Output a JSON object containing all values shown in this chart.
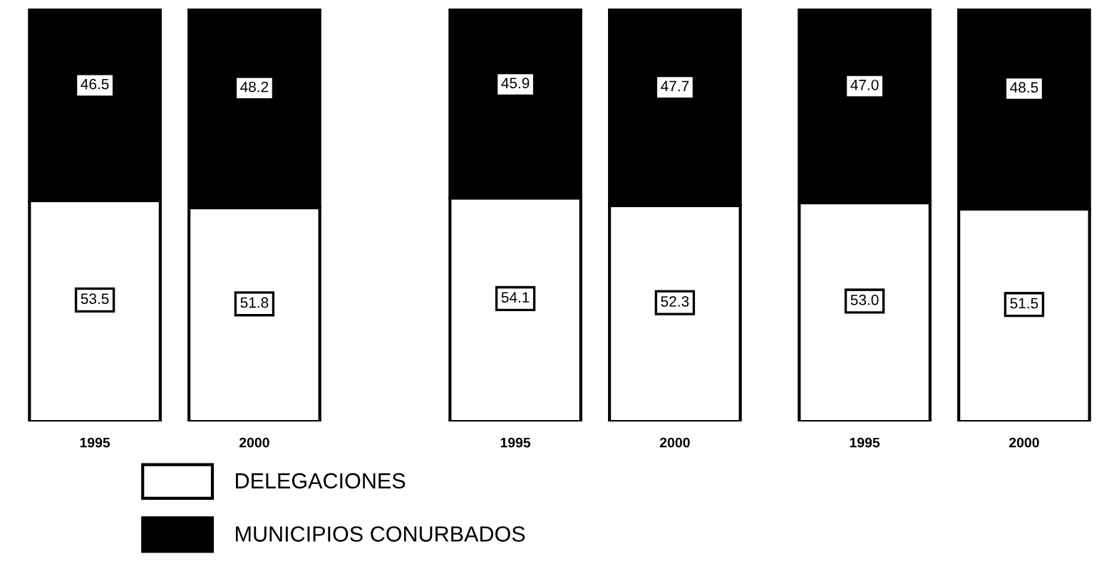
{
  "chart_data": [
    {
      "type": "bar",
      "stacked": true,
      "categories": [
        "1995",
        "2000"
      ],
      "data_labels": true,
      "legend": "bottom right",
      "tick_labels": "x",
      "series": [
        {
          "name": "DELEGACIONES",
          "color": "#ffffff",
          "values": [
            53.5,
            51.8
          ]
        },
        {
          "name": "MUNICIPIOS CONURBADOS",
          "color": "#000000",
          "values": [
            46.5,
            48.2
          ]
        }
      ]
    },
    {
      "type": "bar",
      "stacked": true,
      "categories": [
        "1995",
        "2000"
      ],
      "data_labels": true,
      "tick_labels": "x",
      "series": [
        {
          "color": "#ffffff",
          "values": [
            54.1,
            52.3
          ]
        },
        {
          "color": "#000000",
          "values": [
            45.9,
            47.7
          ]
        }
      ]
    },
    {
      "type": "bar",
      "stacked": true,
      "categories": [
        "1995",
        "2000"
      ],
      "tick_labels": "x",
      "series": [
        {
          "color": "#ffffff",
          "values": [
            53.0,
            51.5
          ],
          "value_labels": [
            "53.0",
            "51.5"
          ]
        },
        {
          "color": "#000000",
          "values": [
            47.0,
            48.5
          ],
          "value_labels": [
            "47.0",
            "48.5"
          ]
        }
      ]
    }
  ]
}
